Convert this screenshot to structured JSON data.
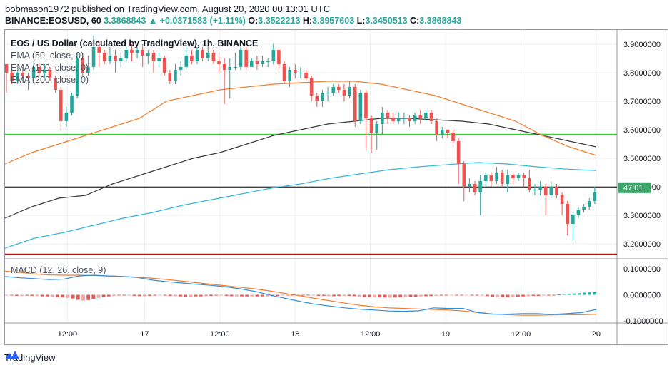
{
  "header": {
    "line1": "bobmason1972 published on TradingView.com, August 20, 2020 00:13:01 UTC",
    "symbol": "BINANCE:EOSUSD, 60",
    "last": "3.3868843",
    "change_arrow": "▲",
    "change": "+0.0371583 (+1.11%)",
    "o_label": "O:",
    "o": "3.3522213",
    "h_label": "H:",
    "h": "3.3957603",
    "l_label": "L:",
    "l": "3.3450513",
    "c_label": "C:",
    "c": "3.3868843"
  },
  "colors": {
    "up": "#26a69a",
    "down": "#ef5350",
    "ema50": "#f57c2a",
    "ema100": "#3a3a3a",
    "ema200": "#35b6d6",
    "macd": "#2e8de0",
    "signal": "#f57c2a",
    "green_line": "#3ccf3c",
    "red_line": "#b71c1c",
    "price_tag": "#3da66b"
  },
  "footer": {
    "brand": "TradingView",
    "logo_icon": "tradingview-logo-icon"
  },
  "chart_data": [
    {
      "type": "candlestick",
      "title": "EOS / US Dollar (calculated by TradingView), 1h, BINANCE",
      "indicators": [
        "EMA (50, close, 0)",
        "EMA (100, close, 0)",
        "EMA (200, close, 0)"
      ],
      "ylim": [
        3.15,
        3.95
      ],
      "y_ticks": [
        "3.9000000",
        "3.8000000",
        "3.7000000",
        "3.6000000",
        "3.5000000",
        "3.4000000",
        "3.3000000",
        "3.2000000"
      ],
      "x_ticks": [
        "12:00",
        "17",
        "12:00",
        "18",
        "12:00",
        "19",
        "12:00",
        "20"
      ],
      "price_tag": "47:01",
      "horizontal_lines": [
        {
          "name": "green-level",
          "value": 3.583
        },
        {
          "name": "black-level",
          "value": 3.398
        },
        {
          "name": "red-level",
          "value": 3.163
        }
      ],
      "candles": [
        [
          3.83,
          3.8,
          3.82,
          3.73
        ],
        [
          3.8,
          3.77,
          3.81,
          3.76
        ],
        [
          3.77,
          3.8,
          3.81,
          3.76
        ],
        [
          3.8,
          3.79,
          3.82,
          3.77
        ],
        [
          3.79,
          3.78,
          3.8,
          3.74
        ],
        [
          3.78,
          3.82,
          3.84,
          3.77
        ],
        [
          3.82,
          3.8,
          3.83,
          3.79
        ],
        [
          3.8,
          3.81,
          3.83,
          3.78
        ],
        [
          3.81,
          3.78,
          3.82,
          3.77
        ],
        [
          3.78,
          3.74,
          3.79,
          3.73
        ],
        [
          3.74,
          3.63,
          3.75,
          3.6
        ],
        [
          3.63,
          3.66,
          3.68,
          3.61
        ],
        [
          3.66,
          3.72,
          3.73,
          3.65
        ],
        [
          3.72,
          3.85,
          3.87,
          3.71
        ],
        [
          3.85,
          3.8,
          3.87,
          3.79
        ],
        [
          3.8,
          3.82,
          3.86,
          3.79
        ],
        [
          3.82,
          3.89,
          3.93,
          3.81
        ],
        [
          3.89,
          3.87,
          3.91,
          3.82
        ],
        [
          3.87,
          3.84,
          3.88,
          3.83
        ],
        [
          3.84,
          3.86,
          3.89,
          3.83
        ],
        [
          3.86,
          3.84,
          3.88,
          3.8
        ],
        [
          3.84,
          3.85,
          3.87,
          3.82
        ],
        [
          3.85,
          3.88,
          3.89,
          3.84
        ],
        [
          3.88,
          3.87,
          3.9,
          3.84
        ],
        [
          3.87,
          3.88,
          3.89,
          3.85
        ],
        [
          3.88,
          3.86,
          3.9,
          3.82
        ],
        [
          3.86,
          3.87,
          3.88,
          3.83
        ],
        [
          3.87,
          3.84,
          3.88,
          3.8
        ],
        [
          3.84,
          3.85,
          3.87,
          3.82
        ],
        [
          3.85,
          3.8,
          3.86,
          3.79
        ],
        [
          3.8,
          3.77,
          3.81,
          3.76
        ],
        [
          3.77,
          3.81,
          3.83,
          3.76
        ],
        [
          3.81,
          3.82,
          3.84,
          3.79
        ],
        [
          3.82,
          3.86,
          3.89,
          3.81
        ],
        [
          3.86,
          3.84,
          3.88,
          3.83
        ],
        [
          3.84,
          3.88,
          3.89,
          3.83
        ],
        [
          3.88,
          3.85,
          3.89,
          3.84
        ],
        [
          3.85,
          3.87,
          3.9,
          3.84
        ],
        [
          3.87,
          3.84,
          3.88,
          3.83
        ],
        [
          3.84,
          3.83,
          3.86,
          3.8
        ],
        [
          3.83,
          3.81,
          3.85,
          3.69
        ],
        [
          3.81,
          3.82,
          3.85,
          3.71
        ],
        [
          3.82,
          3.82,
          3.87,
          3.81
        ],
        [
          3.82,
          3.88,
          3.9,
          3.81
        ],
        [
          3.88,
          3.82,
          3.89,
          3.81
        ],
        [
          3.82,
          3.84,
          3.85,
          3.82
        ],
        [
          3.84,
          3.83,
          3.86,
          3.81
        ],
        [
          3.83,
          3.84,
          3.86,
          3.82
        ],
        [
          3.84,
          3.84,
          3.85,
          3.82
        ],
        [
          3.84,
          3.88,
          3.9,
          3.83
        ],
        [
          3.88,
          3.83,
          3.88,
          3.81
        ],
        [
          3.83,
          3.77,
          3.84,
          3.76
        ],
        [
          3.77,
          3.81,
          3.82,
          3.75
        ],
        [
          3.81,
          3.8,
          3.83,
          3.78
        ],
        [
          3.8,
          3.8,
          3.82,
          3.78
        ],
        [
          3.8,
          3.78,
          3.81,
          3.77
        ],
        [
          3.78,
          3.72,
          3.79,
          3.7
        ],
        [
          3.72,
          3.7,
          3.73,
          3.68
        ],
        [
          3.7,
          3.73,
          3.74,
          3.68
        ],
        [
          3.73,
          3.73,
          3.75,
          3.7
        ],
        [
          3.73,
          3.75,
          3.76,
          3.72
        ],
        [
          3.75,
          3.74,
          3.76,
          3.73
        ],
        [
          3.74,
          3.72,
          3.76,
          3.7
        ],
        [
          3.72,
          3.75,
          3.77,
          3.71
        ],
        [
          3.75,
          3.63,
          3.76,
          3.61
        ],
        [
          3.63,
          3.73,
          3.74,
          3.62
        ],
        [
          3.73,
          3.64,
          3.74,
          3.53
        ],
        [
          3.64,
          3.59,
          3.65,
          3.52
        ],
        [
          3.59,
          3.62,
          3.63,
          3.53
        ],
        [
          3.62,
          3.66,
          3.68,
          3.58
        ],
        [
          3.66,
          3.64,
          3.67,
          3.62
        ],
        [
          3.64,
          3.63,
          3.66,
          3.62
        ],
        [
          3.63,
          3.64,
          3.66,
          3.62
        ],
        [
          3.64,
          3.64,
          3.66,
          3.62
        ],
        [
          3.64,
          3.63,
          3.65,
          3.61
        ],
        [
          3.63,
          3.65,
          3.66,
          3.62
        ],
        [
          3.65,
          3.64,
          3.67,
          3.62
        ],
        [
          3.64,
          3.66,
          3.67,
          3.63
        ],
        [
          3.66,
          3.63,
          3.67,
          3.62
        ],
        [
          3.63,
          3.58,
          3.64,
          3.56
        ],
        [
          3.58,
          3.6,
          3.61,
          3.57
        ],
        [
          3.6,
          3.59,
          3.6,
          3.57
        ],
        [
          3.59,
          3.56,
          3.6,
          3.55
        ],
        [
          3.56,
          3.48,
          3.57,
          3.41
        ],
        [
          3.48,
          3.4,
          3.49,
          3.35
        ],
        [
          3.4,
          3.41,
          3.43,
          3.38
        ],
        [
          3.41,
          3.38,
          3.42,
          3.37
        ],
        [
          3.38,
          3.42,
          3.44,
          3.3
        ],
        [
          3.42,
          3.44,
          3.45,
          3.4
        ],
        [
          3.44,
          3.42,
          3.45,
          3.4
        ],
        [
          3.42,
          3.45,
          3.47,
          3.41
        ],
        [
          3.45,
          3.41,
          3.46,
          3.4
        ],
        [
          3.41,
          3.44,
          3.46,
          3.38
        ],
        [
          3.44,
          3.43,
          3.45,
          3.41
        ],
        [
          3.43,
          3.44,
          3.45,
          3.42
        ],
        [
          3.44,
          3.43,
          3.45,
          3.4
        ],
        [
          3.43,
          3.39,
          3.46,
          3.38
        ],
        [
          3.39,
          3.39,
          3.41,
          3.37
        ],
        [
          3.39,
          3.4,
          3.42,
          3.37
        ],
        [
          3.4,
          3.37,
          3.41,
          3.3
        ],
        [
          3.37,
          3.4,
          3.42,
          3.36
        ],
        [
          3.4,
          3.37,
          3.41,
          3.36
        ],
        [
          3.37,
          3.34,
          3.38,
          3.3
        ],
        [
          3.34,
          3.27,
          3.35,
          3.23
        ],
        [
          3.27,
          3.3,
          3.31,
          3.21
        ],
        [
          3.3,
          3.32,
          3.33,
          3.29
        ],
        [
          3.32,
          3.33,
          3.34,
          3.31
        ],
        [
          3.33,
          3.35,
          3.36,
          3.32
        ],
        [
          3.35,
          3.38,
          3.4,
          3.34
        ]
      ],
      "ema50": [
        3.48,
        3.52,
        3.55,
        3.58,
        3.61,
        3.64,
        3.7,
        3.72,
        3.74,
        3.75,
        3.76,
        3.765,
        3.77,
        3.77,
        3.76,
        3.74,
        3.72,
        3.69,
        3.66,
        3.63,
        3.58,
        3.54,
        3.51
      ],
      "ema100": [
        3.29,
        3.33,
        3.36,
        3.37,
        3.41,
        3.44,
        3.47,
        3.5,
        3.52,
        3.55,
        3.58,
        3.6,
        3.62,
        3.63,
        3.64,
        3.64,
        3.635,
        3.63,
        3.62,
        3.6,
        3.58,
        3.56,
        3.54
      ],
      "ema200": [
        3.185,
        3.22,
        3.24,
        3.265,
        3.29,
        3.31,
        3.335,
        3.355,
        3.375,
        3.395,
        3.41,
        3.43,
        3.445,
        3.46,
        3.47,
        3.478,
        3.485,
        3.48,
        3.47,
        3.462,
        3.457
      ]
    },
    {
      "type": "macd",
      "title": "MACD (12, 26, close, 9)",
      "ylim": [
        -0.105,
        0.135
      ],
      "y_ticks": [
        "0.1000000",
        "0.0000000",
        "-0.1000000"
      ],
      "macd": [
        0.07,
        0.065,
        0.062,
        0.058,
        0.06,
        0.072,
        0.075,
        0.072,
        0.07,
        0.066,
        0.056,
        0.05,
        0.045,
        0.04,
        0.036,
        0.03,
        0.022,
        0.012,
        -0.002,
        -0.014,
        -0.026,
        -0.036,
        -0.043,
        -0.05,
        -0.055,
        -0.058,
        -0.062,
        -0.063,
        -0.061,
        -0.05,
        -0.052,
        -0.052,
        -0.068,
        -0.074,
        -0.074,
        -0.072,
        -0.072,
        -0.075,
        -0.072,
        -0.068,
        -0.056
      ],
      "signal": [
        0.09,
        0.086,
        0.08,
        0.076,
        0.075,
        0.075,
        0.074,
        0.072,
        0.07,
        0.067,
        0.063,
        0.058,
        0.052,
        0.046,
        0.04,
        0.034,
        0.028,
        0.022,
        0.014,
        0.005,
        -0.004,
        -0.014,
        -0.023,
        -0.032,
        -0.04,
        -0.046,
        -0.05,
        -0.052,
        -0.054,
        -0.056,
        -0.058,
        -0.062,
        -0.068,
        -0.073,
        -0.076,
        -0.078,
        -0.078,
        -0.077,
        -0.076,
        -0.076,
        -0.074
      ],
      "histogram": [
        -0.003,
        -0.002,
        -0.004,
        -0.004,
        -0.003,
        -0.004,
        -0.004,
        -0.006,
        -0.006,
        -0.007,
        -0.009,
        -0.01,
        -0.012,
        -0.014,
        -0.019,
        -0.022,
        -0.02,
        -0.015,
        -0.012,
        -0.008,
        -0.006,
        -0.004,
        -0.002,
        -0.002,
        -0.003,
        -0.004,
        -0.005,
        -0.005,
        -0.004,
        -0.003,
        -0.002,
        -0.003,
        -0.004,
        -0.005,
        -0.006,
        -0.007,
        -0.007,
        -0.006,
        -0.006,
        -0.005,
        -0.004,
        -0.003,
        -0.003,
        -0.004,
        -0.005,
        -0.006,
        -0.006,
        -0.006,
        -0.006,
        -0.006,
        -0.006,
        -0.006,
        -0.005,
        -0.004,
        -0.003,
        -0.002,
        -0.002,
        -0.002,
        -0.001,
        -0.002,
        -0.003,
        -0.004,
        -0.004,
        -0.005,
        -0.005,
        -0.004,
        -0.004,
        -0.004,
        -0.005,
        -0.007,
        -0.008,
        -0.009,
        -0.009,
        -0.009,
        -0.01,
        -0.011,
        -0.01,
        -0.009,
        -0.008,
        -0.007,
        -0.007,
        -0.006,
        -0.005,
        -0.004,
        -0.004,
        -0.003,
        -0.002,
        -0.001,
        -0.001,
        -0.001,
        -0.001,
        -0.002,
        -0.002,
        -0.003,
        -0.005,
        -0.007,
        -0.009,
        -0.009,
        -0.009,
        -0.008,
        -0.007,
        -0.006,
        -0.005,
        -0.004,
        -0.004,
        -0.003,
        -0.003,
        -0.002,
        0.001,
        0.003,
        0.004,
        0.005,
        0.006,
        0.008,
        0.009,
        0.01
      ]
    }
  ]
}
